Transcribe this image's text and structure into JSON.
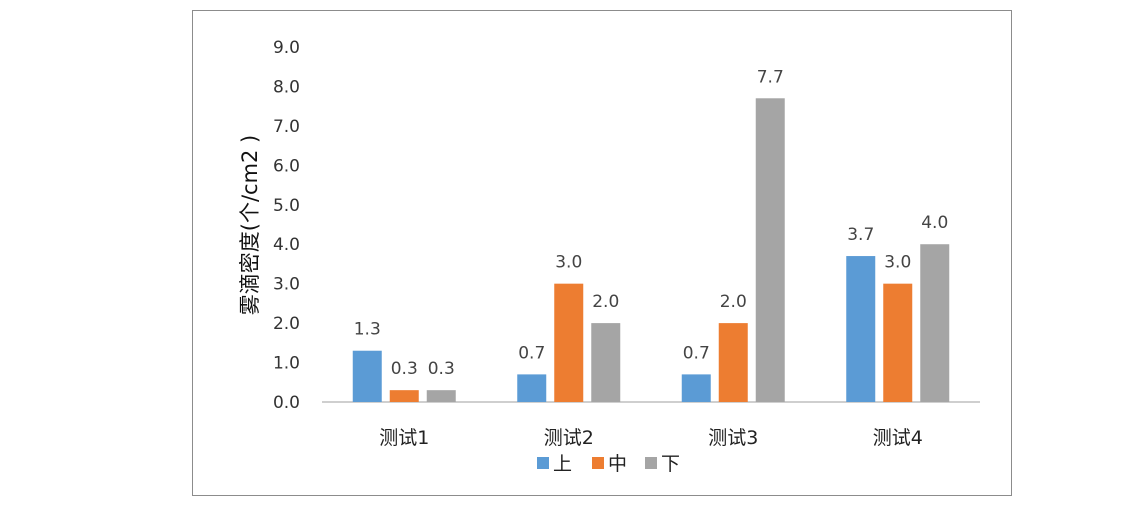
{
  "chart_data": {
    "type": "bar",
    "title": "",
    "xlabel": "",
    "ylabel": "雾滴密度(个/cm2 )",
    "categories": [
      "测试1",
      "测试2",
      "测试3",
      "测试4"
    ],
    "series": [
      {
        "name": "上",
        "color": "#5b9bd5",
        "values": [
          1.3,
          0.7,
          0.7,
          3.7
        ]
      },
      {
        "name": "中",
        "color": "#ed7d31",
        "values": [
          0.3,
          3.0,
          2.0,
          3.0
        ]
      },
      {
        "name": "下",
        "color": "#a5a5a5",
        "values": [
          0.3,
          2.0,
          7.7,
          4.0
        ]
      }
    ],
    "ylim": [
      0,
      9
    ],
    "yticks": [
      "0.0",
      "1.0",
      "2.0",
      "3.0",
      "4.0",
      "5.0",
      "6.0",
      "7.0",
      "8.0",
      "9.0"
    ],
    "grid": false,
    "legend": "bottom"
  }
}
